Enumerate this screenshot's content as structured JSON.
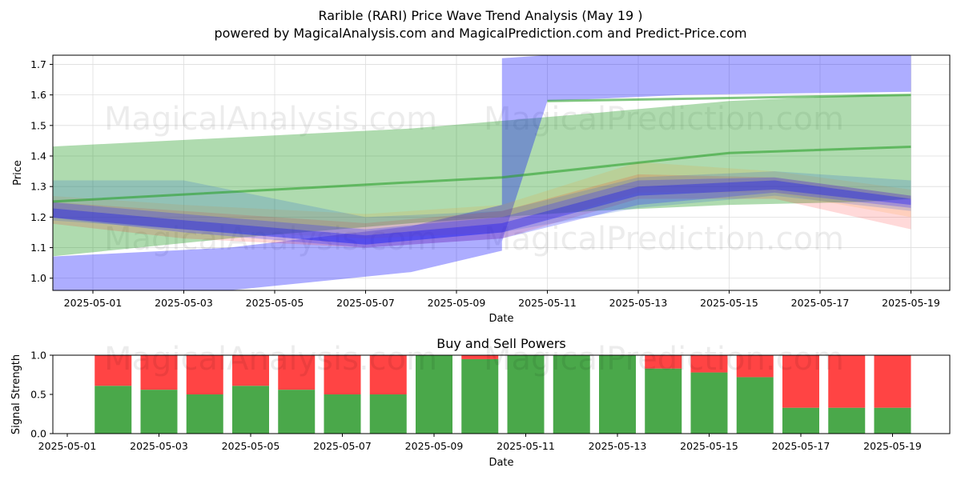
{
  "title_line1": "Rarible (RARI) Price Wave Trend Analysis (May 19 )",
  "title_line2": "powered by MagicalAnalysis.com and MagicalPrediction.com and Predict-Price.com",
  "watermarks": [
    "MagicalAnalysis.com",
    "MagicalPrediction.com"
  ],
  "chart_data": [
    {
      "type": "area",
      "title": "",
      "xlabel": "Date",
      "ylabel": "Price",
      "x_ticks": [
        "2025-05-01",
        "2025-05-03",
        "2025-05-05",
        "2025-05-07",
        "2025-05-09",
        "2025-05-11",
        "2025-05-13",
        "2025-05-15",
        "2025-05-17",
        "2025-05-19"
      ],
      "y_ticks": [
        1.0,
        1.1,
        1.2,
        1.3,
        1.4,
        1.5,
        1.6,
        1.7
      ],
      "xlim": [
        "2025-04-30",
        "2025-05-19"
      ],
      "ylim": [
        0.96,
        1.73
      ],
      "grid": true,
      "bands": [
        {
          "color": "#2ca02c",
          "opacity": 0.38,
          "x": [
            "2025-04-30",
            "2025-05-04",
            "2025-05-08",
            "2025-05-12",
            "2025-05-15",
            "2025-05-18",
            "2025-05-19"
          ],
          "upper": [
            1.43,
            1.46,
            1.49,
            1.54,
            1.58,
            1.6,
            1.6
          ],
          "lower": [
            1.07,
            1.13,
            1.18,
            1.22,
            1.24,
            1.25,
            1.26
          ]
        },
        {
          "color": "#0000ff",
          "opacity": 0.32,
          "x": [
            "2025-04-30",
            "2025-05-04",
            "2025-05-08",
            "2025-05-10",
            "2025-05-10",
            "2025-05-11",
            "2025-05-14",
            "2025-05-19"
          ],
          "upper": [
            1.07,
            1.1,
            1.17,
            1.24,
            1.72,
            1.73,
            1.73,
            1.73
          ],
          "lower": [
            0.96,
            0.96,
            1.02,
            1.09,
            1.12,
            1.58,
            1.6,
            1.61
          ]
        },
        {
          "color": "#ff0000",
          "opacity": 0.15,
          "x": [
            "2025-04-30",
            "2025-05-03",
            "2025-05-07",
            "2025-05-10",
            "2025-05-13",
            "2025-05-16",
            "2025-05-19"
          ],
          "upper": [
            1.25,
            1.22,
            1.18,
            1.22,
            1.34,
            1.33,
            1.27
          ],
          "lower": [
            1.18,
            1.13,
            1.1,
            1.13,
            1.26,
            1.26,
            1.16
          ]
        },
        {
          "color": "#ff8c00",
          "opacity": 0.13,
          "x": [
            "2025-04-30",
            "2025-05-03",
            "2025-05-07",
            "2025-05-10",
            "2025-05-13",
            "2025-05-16",
            "2025-05-19"
          ],
          "upper": [
            1.27,
            1.24,
            1.21,
            1.24,
            1.38,
            1.35,
            1.29
          ],
          "lower": [
            1.2,
            1.16,
            1.13,
            1.15,
            1.28,
            1.28,
            1.2
          ]
        },
        {
          "color": "#1f5fd0",
          "opacity": 0.2,
          "x": [
            "2025-04-30",
            "2025-05-03",
            "2025-05-07",
            "2025-05-10",
            "2025-05-13",
            "2025-05-16",
            "2025-05-19"
          ],
          "upper": [
            1.32,
            1.32,
            1.2,
            1.22,
            1.33,
            1.35,
            1.32
          ],
          "lower": [
            1.19,
            1.16,
            1.11,
            1.15,
            1.23,
            1.27,
            1.22
          ]
        },
        {
          "color": "#3030ff",
          "opacity": 0.28,
          "x": [
            "2025-04-30",
            "2025-05-03",
            "2025-05-07",
            "2025-05-10",
            "2025-05-13",
            "2025-05-16",
            "2025-05-19"
          ],
          "upper": [
            1.25,
            1.21,
            1.16,
            1.2,
            1.32,
            1.33,
            1.27
          ],
          "lower": [
            1.2,
            1.15,
            1.1,
            1.13,
            1.24,
            1.28,
            1.23
          ]
        },
        {
          "color": "#0000ff",
          "opacity": 0.3,
          "x": [
            "2025-04-30",
            "2025-05-03",
            "2025-05-07",
            "2025-05-10",
            "2025-05-13",
            "2025-05-16",
            "2025-05-19"
          ],
          "upper": [
            1.23,
            1.19,
            1.14,
            1.18,
            1.3,
            1.32,
            1.26
          ],
          "lower": [
            1.2,
            1.16,
            1.11,
            1.15,
            1.27,
            1.29,
            1.24
          ]
        }
      ],
      "lines": [
        {
          "color": "#2ca02c",
          "opacity": 0.6,
          "x": [
            "2025-04-30",
            "2025-05-05",
            "2025-05-10",
            "2025-05-15",
            "2025-05-19"
          ],
          "y": [
            1.25,
            1.29,
            1.33,
            1.41,
            1.43
          ]
        },
        {
          "color": "#2ca02c",
          "opacity": 0.6,
          "x": [
            "2025-05-11",
            "2025-05-15",
            "2025-05-19"
          ],
          "y": [
            1.58,
            1.59,
            1.6
          ]
        }
      ]
    },
    {
      "type": "bar",
      "title": "Buy and Sell Powers",
      "xlabel": "Date",
      "ylabel": "Signal Strength",
      "x_ticks": [
        "2025-05-01",
        "2025-05-03",
        "2025-05-05",
        "2025-05-07",
        "2025-05-09",
        "2025-05-11",
        "2025-05-13",
        "2025-05-15",
        "2025-05-17",
        "2025-05-19"
      ],
      "y_ticks": [
        0.0,
        0.5,
        1.0
      ],
      "ylim": [
        0,
        1
      ],
      "categories": [
        "2025-05-02",
        "2025-05-03",
        "2025-05-04",
        "2025-05-05",
        "2025-05-06",
        "2025-05-07",
        "2025-05-08",
        "2025-05-09",
        "2025-05-10",
        "2025-05-11",
        "2025-05-12",
        "2025-05-13",
        "2025-05-14",
        "2025-05-15",
        "2025-05-16",
        "2025-05-17",
        "2025-05-18",
        "2025-05-19"
      ],
      "series": [
        {
          "color": "#4aa84a",
          "values": [
            0.61,
            0.56,
            0.5,
            0.61,
            0.56,
            0.5,
            0.5,
            1.0,
            0.95,
            1.0,
            1.0,
            1.0,
            0.83,
            0.78,
            0.72,
            0.33,
            0.33,
            0.33
          ]
        },
        {
          "color": "#ff4444",
          "values": [
            0.39,
            0.44,
            0.5,
            0.39,
            0.44,
            0.5,
            0.5,
            0.0,
            0.05,
            0.0,
            0.0,
            0.0,
            0.17,
            0.22,
            0.28,
            0.67,
            0.67,
            0.67
          ]
        }
      ]
    }
  ]
}
